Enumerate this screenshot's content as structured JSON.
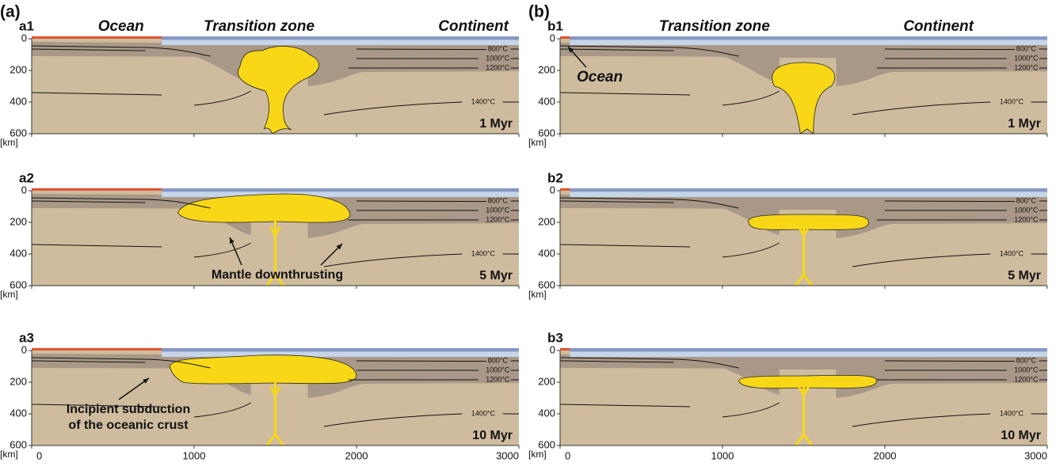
{
  "figure": {
    "columns": [
      {
        "label": "(a)",
        "panels": [
          {
            "label": "a1",
            "regions": [
              "Ocean",
              "Transition zone",
              "Continent"
            ],
            "time": "1 Myr"
          },
          {
            "label": "a2",
            "time": "5 Myr",
            "annotation": "Mantle downthrusting"
          },
          {
            "label": "a3",
            "time": "10 Myr",
            "annotation": [
              "Incipient subduction",
              "of the oceanic crust"
            ]
          }
        ]
      },
      {
        "label": "(b)",
        "panels": [
          {
            "label": "b1",
            "regions": [
              "Transition zone",
              "Continent"
            ],
            "time": "1 Myr",
            "annotation": "Ocean"
          },
          {
            "label": "b2",
            "time": "5 Myr"
          },
          {
            "label": "b3",
            "time": "10 Myr"
          }
        ]
      }
    ],
    "isotherms": [
      "800°C",
      "1000°C",
      "1200°C",
      "1400°C"
    ],
    "depth_ticks": [
      0,
      200,
      400,
      600
    ],
    "depth_unit": "[km]",
    "distance_ticks": [
      0,
      1000,
      2000,
      3000
    ]
  }
}
